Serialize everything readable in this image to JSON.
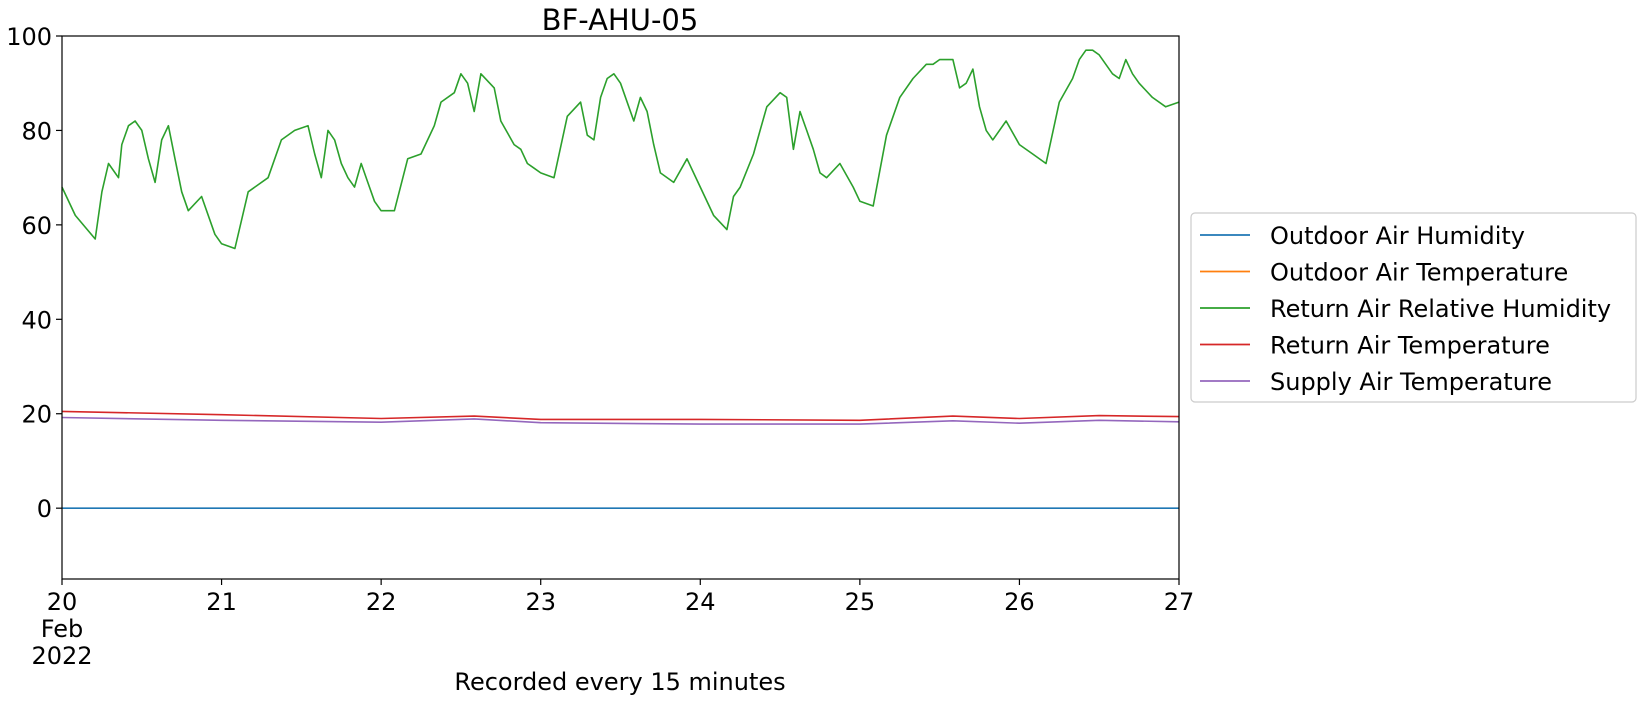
{
  "chart_data": {
    "type": "line",
    "title": "BF-AHU-05",
    "xlabel": "Recorded every 15 minutes",
    "ylabel": "",
    "xlim": [
      "2022-02-20",
      "2022-02-27"
    ],
    "ylim": [
      -15,
      100
    ],
    "x_ticks": [
      {
        "label": "20",
        "sub": [
          "Feb",
          "2022"
        ]
      },
      {
        "label": "21"
      },
      {
        "label": "22"
      },
      {
        "label": "23"
      },
      {
        "label": "24"
      },
      {
        "label": "25"
      },
      {
        "label": "26"
      },
      {
        "label": "27"
      }
    ],
    "y_ticks": [
      0,
      20,
      40,
      60,
      80,
      100
    ],
    "grid": false,
    "legend_position": "center-right-outside",
    "series": [
      {
        "name": "Outdoor Air Humidity",
        "color": "#1f77b4",
        "x": [
          "2022-02-20",
          "2022-02-27"
        ],
        "y": [
          0,
          0
        ]
      },
      {
        "name": "Outdoor Air Temperature",
        "color": "#ff7f0e",
        "x": [],
        "y": []
      },
      {
        "name": "Return Air Relative Humidity",
        "color": "#2ca02c",
        "x": [
          "2022-02-20 00:00",
          "2022-02-20 02:00",
          "2022-02-20 05:00",
          "2022-02-20 06:00",
          "2022-02-20 07:00",
          "2022-02-20 08:30",
          "2022-02-20 09:00",
          "2022-02-20 10:00",
          "2022-02-20 11:00",
          "2022-02-20 12:00",
          "2022-02-20 13:00",
          "2022-02-20 14:00",
          "2022-02-20 15:00",
          "2022-02-20 16:00",
          "2022-02-20 17:00",
          "2022-02-20 18:00",
          "2022-02-20 19:00",
          "2022-02-20 21:00",
          "2022-02-20 23:00",
          "2022-02-21 00:00",
          "2022-02-21 02:00",
          "2022-02-21 04:00",
          "2022-02-21 07:00",
          "2022-02-21 09:00",
          "2022-02-21 11:00",
          "2022-02-21 13:00",
          "2022-02-21 14:00",
          "2022-02-21 15:00",
          "2022-02-21 16:00",
          "2022-02-21 17:00",
          "2022-02-21 18:00",
          "2022-02-21 19:00",
          "2022-02-21 20:00",
          "2022-02-21 21:00",
          "2022-02-21 22:00",
          "2022-02-21 23:00",
          "2022-02-22 00:00",
          "2022-02-22 02:00",
          "2022-02-22 04:00",
          "2022-02-22 06:00",
          "2022-02-22 08:00",
          "2022-02-22 09:00",
          "2022-02-22 11:00",
          "2022-02-22 12:00",
          "2022-02-22 13:00",
          "2022-02-22 14:00",
          "2022-02-22 15:00",
          "2022-02-22 17:00",
          "2022-02-22 18:00",
          "2022-02-22 20:00",
          "2022-02-22 21:00",
          "2022-02-22 22:00",
          "2022-02-22 23:00",
          "2022-02-23 00:00",
          "2022-02-23 02:00",
          "2022-02-23 04:00",
          "2022-02-23 06:00",
          "2022-02-23 07:00",
          "2022-02-23 08:00",
          "2022-02-23 09:00",
          "2022-02-23 10:00",
          "2022-02-23 11:00",
          "2022-02-23 12:00",
          "2022-02-23 14:00",
          "2022-02-23 15:00",
          "2022-02-23 16:00",
          "2022-02-23 17:00",
          "2022-02-23 18:00",
          "2022-02-23 20:00",
          "2022-02-23 22:00",
          "2022-02-24 00:00",
          "2022-02-24 02:00",
          "2022-02-24 04:00",
          "2022-02-24 05:00",
          "2022-02-24 06:00",
          "2022-02-24 08:00",
          "2022-02-24 09:00",
          "2022-02-24 10:00",
          "2022-02-24 12:00",
          "2022-02-24 13:00",
          "2022-02-24 14:00",
          "2022-02-24 15:00",
          "2022-02-24 16:00",
          "2022-02-24 17:00",
          "2022-02-24 18:00",
          "2022-02-24 19:00",
          "2022-02-24 21:00",
          "2022-02-24 23:00",
          "2022-02-25 00:00",
          "2022-02-25 02:00",
          "2022-02-25 04:00",
          "2022-02-25 06:00",
          "2022-02-25 08:00",
          "2022-02-25 10:00",
          "2022-02-25 11:00",
          "2022-02-25 12:00",
          "2022-02-25 14:00",
          "2022-02-25 15:00",
          "2022-02-25 16:00",
          "2022-02-25 17:00",
          "2022-02-25 18:00",
          "2022-02-25 19:00",
          "2022-02-25 20:00",
          "2022-02-25 22:00",
          "2022-02-26 00:00",
          "2022-02-26 02:00",
          "2022-02-26 04:00",
          "2022-02-26 06:00",
          "2022-02-26 08:00",
          "2022-02-26 09:00",
          "2022-02-26 10:00",
          "2022-02-26 11:00",
          "2022-02-26 12:00",
          "2022-02-26 14:00",
          "2022-02-26 15:00",
          "2022-02-26 16:00",
          "2022-02-26 17:00",
          "2022-02-26 18:00",
          "2022-02-26 20:00",
          "2022-02-26 22:00",
          "2022-02-27 00:00"
        ],
        "y": [
          68,
          62,
          57,
          67,
          73,
          70,
          77,
          81,
          82,
          80,
          74,
          69,
          78,
          81,
          74,
          67,
          63,
          66,
          58,
          56,
          55,
          67,
          70,
          78,
          80,
          81,
          75,
          70,
          80,
          78,
          73,
          70,
          68,
          73,
          69,
          65,
          63,
          63,
          74,
          75,
          81,
          86,
          88,
          92,
          90,
          84,
          92,
          89,
          82,
          77,
          76,
          73,
          72,
          71,
          70,
          83,
          86,
          79,
          78,
          87,
          91,
          92,
          90,
          82,
          87,
          84,
          77,
          71,
          69,
          74,
          68,
          62,
          59,
          66,
          68,
          75,
          80,
          85,
          88,
          87,
          76,
          84,
          80,
          76,
          71,
          70,
          73,
          68,
          65,
          64,
          79,
          87,
          91,
          94,
          94,
          95,
          95,
          89,
          90,
          93,
          85,
          80,
          78,
          82,
          77,
          75,
          73,
          86,
          91,
          95,
          97,
          97,
          96,
          92,
          91,
          95,
          92,
          90,
          87,
          85,
          86
        ]
      },
      {
        "name": "Return Air Temperature",
        "color": "#d62728",
        "x": [
          "2022-02-20",
          "2022-02-21",
          "2022-02-22",
          "2022-02-22 14:00",
          "2022-02-23",
          "2022-02-24",
          "2022-02-25",
          "2022-02-25 14:00",
          "2022-02-26",
          "2022-02-26 12:00",
          "2022-02-27"
        ],
        "y": [
          20.5,
          19.8,
          19.0,
          19.5,
          18.8,
          18.8,
          18.6,
          19.5,
          19.0,
          19.6,
          19.4
        ]
      },
      {
        "name": "Supply Air Temperature",
        "color": "#9467bd",
        "x": [
          "2022-02-20",
          "2022-02-21",
          "2022-02-22",
          "2022-02-22 14:00",
          "2022-02-23",
          "2022-02-24",
          "2022-02-25",
          "2022-02-25 14:00",
          "2022-02-26",
          "2022-02-26 12:00",
          "2022-02-27"
        ],
        "y": [
          19.2,
          18.6,
          18.2,
          18.9,
          18.1,
          17.8,
          17.8,
          18.5,
          18.0,
          18.6,
          18.3
        ]
      }
    ]
  }
}
